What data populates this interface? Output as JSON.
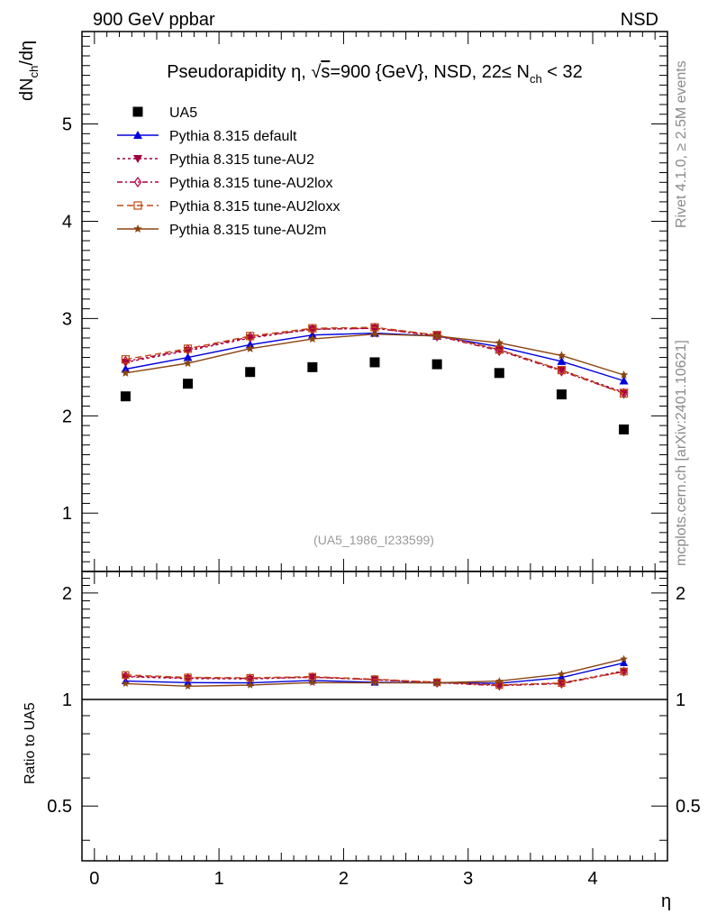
{
  "header": {
    "left": "900 GeV ppbar",
    "right": "NSD"
  },
  "side": {
    "rivet": "Rivet 4.1.0, ≥ 2.5M events",
    "mcplots": "mcplots.cern.ch [arXiv:2401.10621]"
  },
  "chart_data": {
    "type": "line",
    "title": "Pseudorapidity η, √s=900 {GeV}, NSD, 22≤ N_ch < 32",
    "title_parts": {
      "a": "Pseudorapidity η, ",
      "sqrt": "√",
      "s": "s",
      "b": "=900 {GeV}, NSD, 22≤ N",
      "sub": "ch",
      "c": " < 32"
    },
    "xlabel": "η",
    "ylabel_parts": {
      "d1": "dN",
      "sub": "ch",
      "d2": "/dη"
    },
    "ratio_ylabel": "Ratio to UA5",
    "reference": "(UA5_1986_I233599)",
    "xlim": [
      -0.1,
      4.6
    ],
    "ylim": [
      0.4,
      5.95
    ],
    "ratio_ylim": [
      0.35,
      2.3
    ],
    "x_ticks": [
      0,
      1,
      2,
      3,
      4
    ],
    "x_tick_labels": [
      "0",
      "1",
      "2",
      "3",
      "4"
    ],
    "y_ticks": [
      1,
      2,
      3,
      4,
      5
    ],
    "y_tick_labels": [
      "1",
      "2",
      "3",
      "4",
      "5"
    ],
    "ratio_ticks": [
      0.5,
      1,
      2
    ],
    "ratio_tick_labels": [
      "0.5",
      "1",
      "2"
    ],
    "x": [
      0.25,
      0.75,
      1.25,
      1.75,
      2.25,
      2.75,
      3.25,
      3.75,
      4.25
    ],
    "data": {
      "name": "UA5",
      "values": [
        2.2,
        2.33,
        2.45,
        2.5,
        2.55,
        2.53,
        2.44,
        2.22,
        1.86
      ]
    },
    "series": [
      {
        "name": "Pythia 8.315 default",
        "color": "#0000dd",
        "marker": "triangle",
        "dash": "solid",
        "values": [
          2.48,
          2.6,
          2.73,
          2.83,
          2.85,
          2.82,
          2.71,
          2.56,
          2.36
        ]
      },
      {
        "name": "Pythia 8.315 tune-AU2",
        "color": "#a00040",
        "marker": "triangle-down",
        "dash": "dot",
        "values": [
          2.55,
          2.67,
          2.8,
          2.89,
          2.9,
          2.83,
          2.68,
          2.47,
          2.24
        ]
      },
      {
        "name": "Pythia 8.315 tune-AU2lox",
        "color": "#b0003a",
        "marker": "diamond",
        "dash": "dashdot",
        "values": [
          2.56,
          2.68,
          2.81,
          2.89,
          2.9,
          2.82,
          2.67,
          2.46,
          2.23
        ]
      },
      {
        "name": "Pythia 8.315 tune-AU2loxx",
        "color": "#c04810",
        "marker": "square-open",
        "dash": "dash",
        "values": [
          2.58,
          2.69,
          2.82,
          2.9,
          2.91,
          2.83,
          2.68,
          2.47,
          2.23
        ]
      },
      {
        "name": "Pythia 8.315 tune-AU2m",
        "color": "#8b4513",
        "marker": "star",
        "dash": "solid",
        "values": [
          2.44,
          2.54,
          2.69,
          2.79,
          2.84,
          2.82,
          2.75,
          2.62,
          2.42
        ]
      }
    ]
  }
}
